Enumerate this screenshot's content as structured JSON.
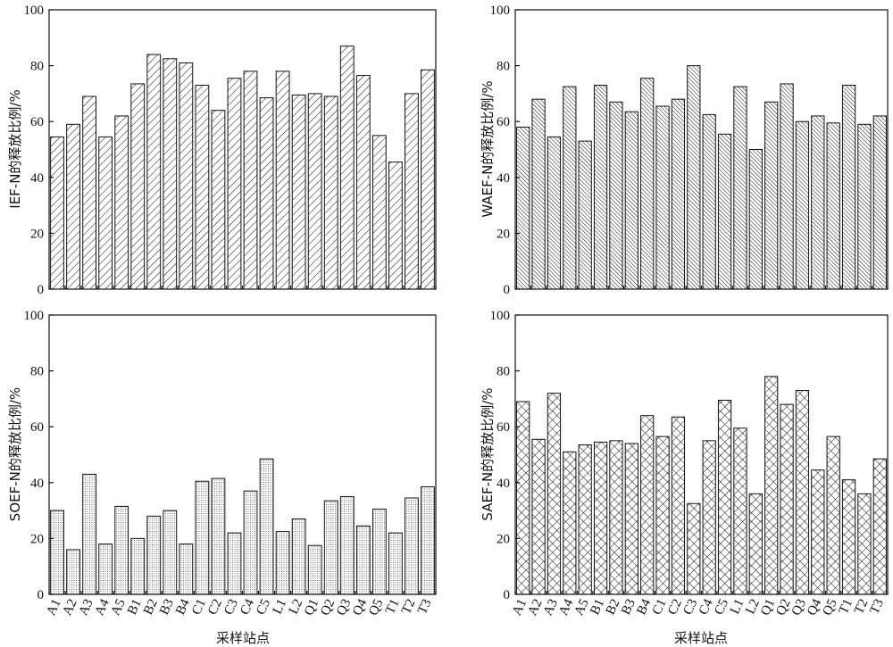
{
  "chart_data": [
    {
      "type": "bar",
      "ylabel": "IEF-N的释放比例/%",
      "xlabel": "",
      "ylim": [
        0,
        100
      ],
      "yticks": [
        "0",
        "20",
        "40",
        "60",
        "80",
        "100"
      ],
      "pattern": "diagonal-forward-sparse",
      "categories": [
        "A1",
        "A2",
        "A3",
        "A4",
        "A5",
        "B1",
        "B2",
        "B3",
        "B4",
        "C1",
        "C2",
        "C3",
        "C4",
        "C5",
        "L1",
        "L2",
        "Q1",
        "Q2",
        "Q3",
        "Q4",
        "Q5",
        "T1",
        "T2",
        "T3"
      ],
      "values": [
        54.5,
        59,
        69,
        54.5,
        62,
        73.5,
        84,
        82.5,
        81,
        73,
        64,
        75.5,
        78,
        68.5,
        78,
        69.5,
        70,
        69,
        87,
        76.5,
        55,
        45.5,
        70,
        78.5
      ]
    },
    {
      "type": "bar",
      "ylabel": "WAEF-N的释放比例/%",
      "xlabel": "",
      "ylim": [
        0,
        100
      ],
      "yticks": [
        "0",
        "20",
        "40",
        "60",
        "80",
        "100"
      ],
      "pattern": "diagonal-back-dense",
      "categories": [
        "A1",
        "A2",
        "A3",
        "A4",
        "A5",
        "B1",
        "B2",
        "B3",
        "B4",
        "C1",
        "C2",
        "C3",
        "C4",
        "C5",
        "L1",
        "L2",
        "Q1",
        "Q2",
        "Q3",
        "Q4",
        "Q5",
        "T1",
        "T2",
        "T3"
      ],
      "values": [
        58,
        68,
        54.5,
        72.5,
        53,
        73,
        67,
        63.5,
        75.5,
        65.5,
        68,
        80,
        62.5,
        55.5,
        72.5,
        50,
        67,
        73.5,
        60,
        62,
        59.5,
        73,
        59,
        62
      ]
    },
    {
      "type": "bar",
      "ylabel": "SOEF-N的释放比例/%",
      "xlabel": "采样站点",
      "ylim": [
        0,
        100
      ],
      "yticks": [
        "0",
        "20",
        "40",
        "60",
        "80",
        "100"
      ],
      "pattern": "dotted",
      "categories": [
        "A1",
        "A2",
        "A3",
        "A4",
        "A5",
        "B1",
        "B2",
        "B3",
        "B4",
        "C1",
        "C2",
        "C3",
        "C4",
        "C5",
        "L1",
        "L2",
        "Q1",
        "Q2",
        "Q3",
        "Q4",
        "Q5",
        "T1",
        "T2",
        "T3"
      ],
      "values": [
        30,
        16,
        43,
        18,
        31.5,
        20,
        28,
        30,
        18,
        40.5,
        41.5,
        22,
        37,
        48.5,
        22.5,
        27,
        17.5,
        33.5,
        35,
        24.5,
        30.5,
        22,
        34.5,
        38.5
      ]
    },
    {
      "type": "bar",
      "ylabel": "SAEF-N的释放比例/%",
      "xlabel": "采样站点",
      "ylim": [
        0,
        100
      ],
      "yticks": [
        "0",
        "20",
        "40",
        "60",
        "80",
        "100"
      ],
      "pattern": "crosshatch",
      "categories": [
        "A1",
        "A2",
        "A3",
        "A4",
        "A5",
        "B1",
        "B2",
        "B3",
        "B4",
        "C1",
        "C2",
        "C3",
        "C4",
        "C5",
        "L1",
        "L2",
        "Q1",
        "Q2",
        "Q3",
        "Q4",
        "Q5",
        "T1",
        "T2",
        "T3"
      ],
      "values": [
        69,
        55.5,
        72,
        51,
        53.5,
        54.5,
        55,
        54,
        64,
        56.5,
        63.5,
        32.5,
        55,
        69.5,
        59.5,
        36,
        78,
        68,
        73,
        44.5,
        56.5,
        41,
        36,
        48.5
      ]
    }
  ]
}
